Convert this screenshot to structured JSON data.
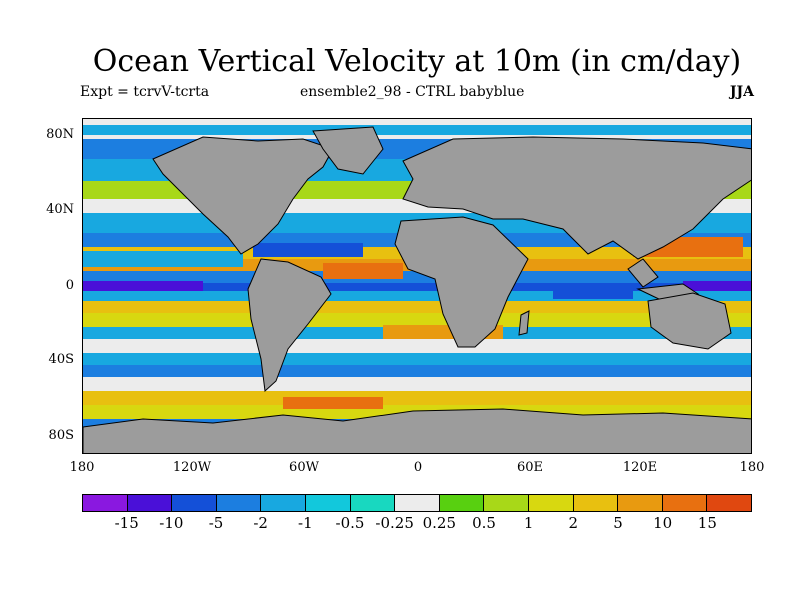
{
  "title": "Ocean Vertical Velocity at 10m (in cm/day)",
  "subtitle_left": "Expt = tcrvV-tcrta",
  "subtitle_mid": "ensemble2_98 - CTRL babyblue",
  "season": "JJA",
  "y_ticks": [
    "80N",
    "40N",
    "0",
    "40S",
    "80S"
  ],
  "x_ticks": [
    "180",
    "120W",
    "60W",
    "0",
    "60E",
    "120E",
    "180"
  ],
  "colorbar": {
    "colors": [
      "#8a18e0",
      "#4a10d8",
      "#1450d8",
      "#1c7ee0",
      "#18a8e0",
      "#12c8dc",
      "#18d8c0",
      "#ececec",
      "#58d010",
      "#a8d818",
      "#d8d810",
      "#e8c010",
      "#e89a10",
      "#e87010",
      "#e04810"
    ],
    "labels": [
      "-15",
      "-10",
      "-5",
      "-2",
      "-1",
      "-0.5",
      "-0.25",
      "0.25",
      "0.5",
      "1",
      "2",
      "5",
      "10",
      "15"
    ]
  },
  "land_color": "#9c9c9c"
}
